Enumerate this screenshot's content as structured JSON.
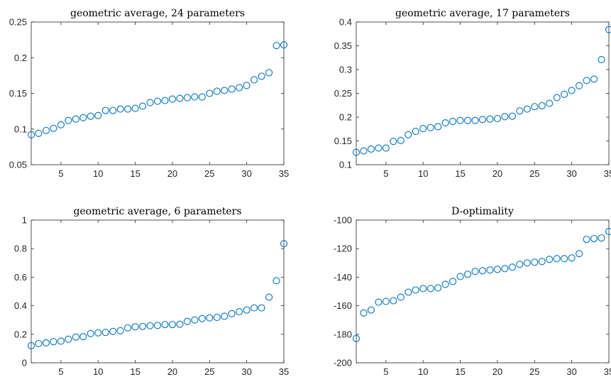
{
  "chart_data": [
    {
      "type": "scatter",
      "title": "geometric average, 24 parameters",
      "xlim": [
        1,
        35
      ],
      "ylim": [
        0.05,
        0.25
      ],
      "xticks": [
        5,
        10,
        15,
        20,
        25,
        30,
        35
      ],
      "yticks": [
        0.05,
        0.1,
        0.15,
        0.2,
        0.25
      ],
      "ytick_labels": [
        "0.05",
        "0.1",
        "0.15",
        "0.2",
        "0.25"
      ],
      "marker_color": "#0072bd",
      "x": [
        1,
        2,
        3,
        4,
        5,
        6,
        7,
        8,
        9,
        10,
        11,
        12,
        13,
        14,
        15,
        16,
        17,
        18,
        19,
        20,
        21,
        22,
        23,
        24,
        25,
        26,
        27,
        28,
        29,
        30,
        31,
        32,
        33,
        34,
        35
      ],
      "values": [
        0.092,
        0.094,
        0.098,
        0.101,
        0.106,
        0.112,
        0.114,
        0.116,
        0.118,
        0.119,
        0.126,
        0.126,
        0.128,
        0.128,
        0.129,
        0.132,
        0.137,
        0.139,
        0.14,
        0.142,
        0.143,
        0.144,
        0.145,
        0.145,
        0.15,
        0.153,
        0.154,
        0.156,
        0.158,
        0.161,
        0.169,
        0.174,
        0.179,
        0.217,
        0.218
      ]
    },
    {
      "type": "scatter",
      "title": "geometric average, 17 parameters",
      "xlim": [
        1,
        35
      ],
      "ylim": [
        0.1,
        0.4
      ],
      "xticks": [
        5,
        10,
        15,
        20,
        25,
        30,
        35
      ],
      "yticks": [
        0.1,
        0.15,
        0.2,
        0.25,
        0.3,
        0.35,
        0.4
      ],
      "ytick_labels": [
        "0.1",
        "0.15",
        "0.2",
        "0.25",
        "0.3",
        "0.35",
        "0.4"
      ],
      "marker_color": "#0072bd",
      "x": [
        1,
        2,
        3,
        4,
        5,
        6,
        7,
        8,
        9,
        10,
        11,
        12,
        13,
        14,
        15,
        16,
        17,
        18,
        19,
        20,
        21,
        22,
        23,
        24,
        25,
        26,
        27,
        28,
        29,
        30,
        31,
        32,
        33,
        34,
        35
      ],
      "values": [
        0.126,
        0.129,
        0.133,
        0.135,
        0.135,
        0.149,
        0.151,
        0.163,
        0.17,
        0.176,
        0.178,
        0.18,
        0.188,
        0.191,
        0.193,
        0.193,
        0.193,
        0.195,
        0.196,
        0.197,
        0.201,
        0.202,
        0.213,
        0.217,
        0.222,
        0.224,
        0.229,
        0.241,
        0.248,
        0.256,
        0.266,
        0.277,
        0.28,
        0.321,
        0.384
      ]
    },
    {
      "type": "scatter",
      "title": "geometric average, 6 parameters",
      "xlim": [
        1,
        35
      ],
      "ylim": [
        0,
        1
      ],
      "xticks": [
        5,
        10,
        15,
        20,
        25,
        30,
        35
      ],
      "yticks": [
        0,
        0.2,
        0.4,
        0.6,
        0.8,
        1
      ],
      "ytick_labels": [
        "0",
        "0.2",
        "0.4",
        "0.6",
        "0.8",
        "1"
      ],
      "marker_color": "#0072bd",
      "x": [
        1,
        2,
        3,
        4,
        5,
        6,
        7,
        8,
        9,
        10,
        11,
        12,
        13,
        14,
        15,
        16,
        17,
        18,
        19,
        20,
        21,
        22,
        23,
        24,
        25,
        26,
        27,
        28,
        29,
        30,
        31,
        32,
        33,
        34,
        35
      ],
      "values": [
        0.12,
        0.135,
        0.14,
        0.148,
        0.152,
        0.165,
        0.18,
        0.183,
        0.205,
        0.21,
        0.213,
        0.22,
        0.225,
        0.245,
        0.252,
        0.255,
        0.26,
        0.262,
        0.268,
        0.268,
        0.27,
        0.29,
        0.3,
        0.31,
        0.315,
        0.318,
        0.326,
        0.345,
        0.358,
        0.37,
        0.385,
        0.385,
        0.46,
        0.575,
        0.835
      ]
    },
    {
      "type": "scatter",
      "title": "D-optimality",
      "xlim": [
        1,
        35
      ],
      "ylim": [
        -200,
        -100
      ],
      "xticks": [
        5,
        10,
        15,
        20,
        25,
        30,
        35
      ],
      "yticks": [
        -200,
        -180,
        -160,
        -140,
        -120,
        -100
      ],
      "ytick_labels": [
        "-200",
        "-180",
        "-160",
        "-140",
        "-120",
        "-100"
      ],
      "marker_color": "#0072bd",
      "x": [
        1,
        2,
        3,
        4,
        5,
        6,
        7,
        8,
        9,
        10,
        11,
        12,
        13,
        14,
        15,
        16,
        17,
        18,
        19,
        20,
        21,
        22,
        23,
        24,
        25,
        26,
        27,
        28,
        29,
        30,
        31,
        32,
        33,
        34,
        35
      ],
      "values": [
        -183,
        -165,
        -163,
        -157.5,
        -157,
        -156.5,
        -154,
        -150.5,
        -149,
        -148,
        -148,
        -147.5,
        -145,
        -143,
        -139.5,
        -138,
        -136,
        -135.5,
        -135,
        -134.5,
        -134,
        -133,
        -131,
        -130,
        -129.5,
        -129,
        -127.5,
        -127,
        -127,
        -126.5,
        -123.5,
        -113.5,
        -113,
        -112.5,
        -108
      ]
    }
  ]
}
